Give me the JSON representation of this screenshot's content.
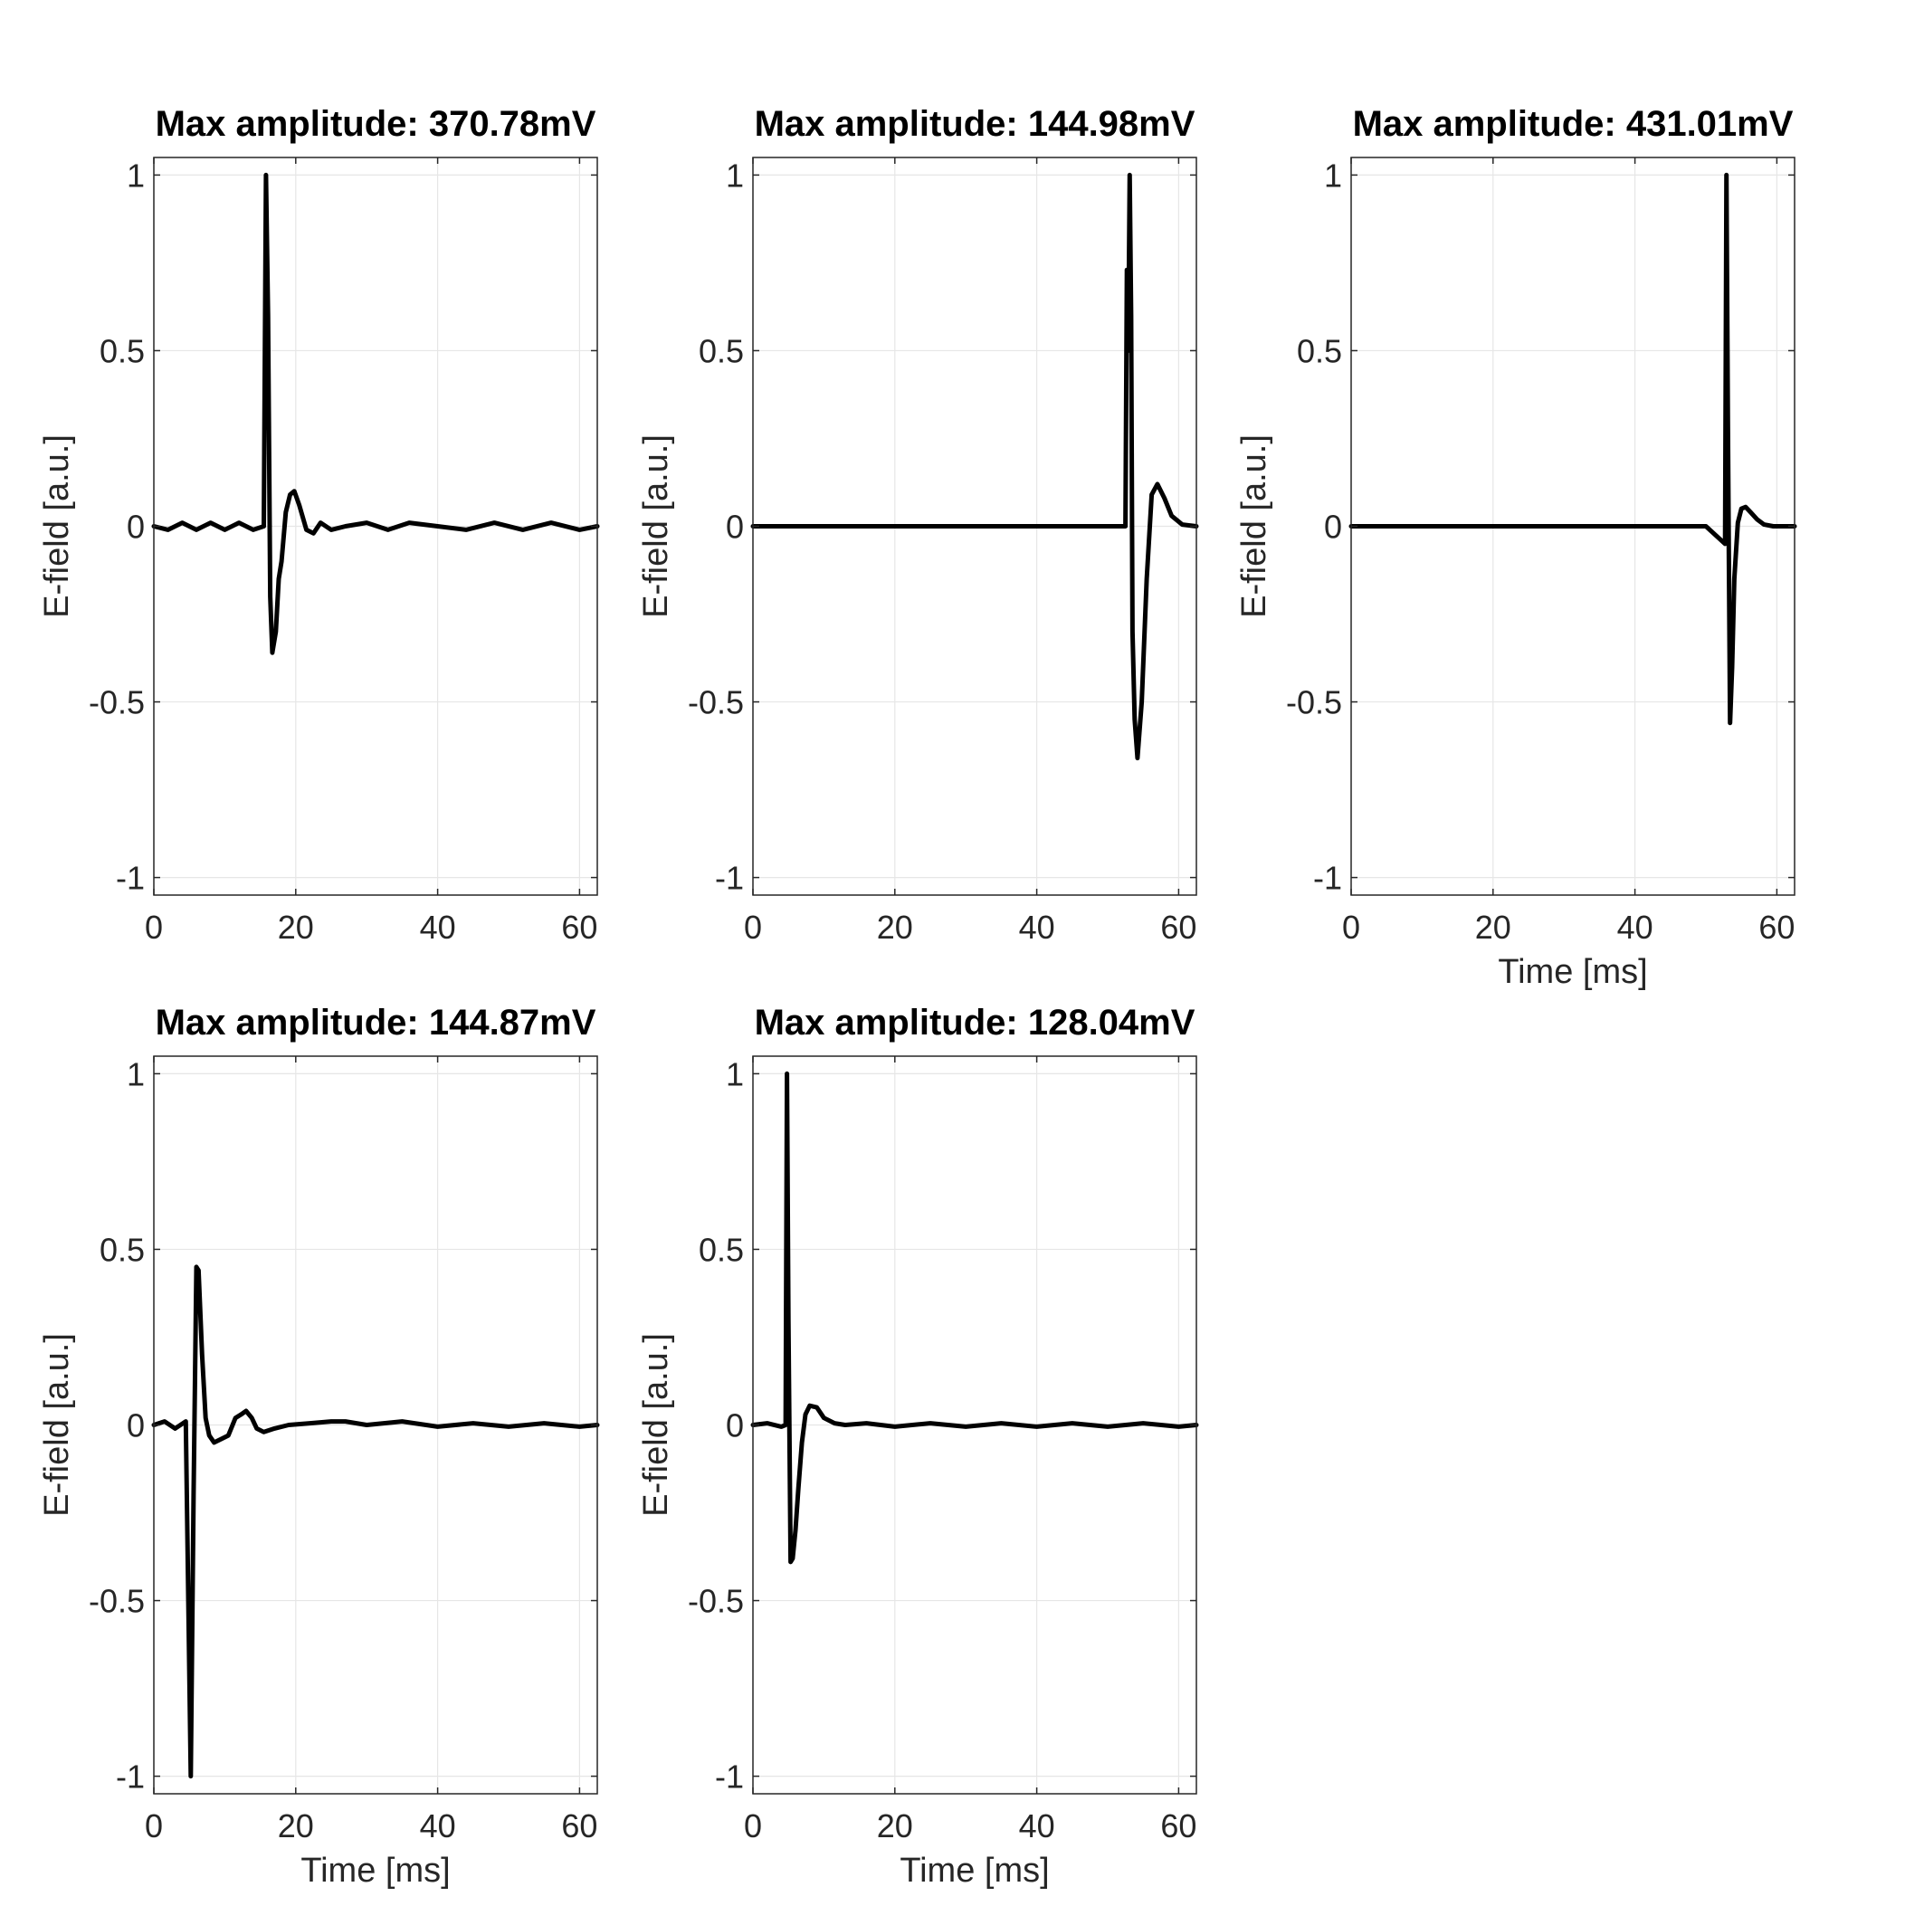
{
  "chart_data": [
    {
      "type": "line",
      "title": "Max amplitude: 370.78mV",
      "xlabel": "",
      "ylabel": "E-field [a.u.]",
      "xlim": [
        0,
        62.5
      ],
      "ylim": [
        -1.05,
        1.05
      ],
      "xticks": [
        0,
        20,
        40,
        60
      ],
      "yticks": [
        1,
        0.5,
        0,
        -0.5,
        -1
      ],
      "grid": true,
      "series": [
        {
          "x": [
            0,
            2,
            4,
            6,
            8,
            10,
            12,
            14,
            15.5,
            15.8,
            16.1,
            16.4,
            16.7,
            17.2,
            17.6,
            18.0,
            18.6,
            19.2,
            19.8,
            20.5,
            21.5,
            22.5,
            23.5,
            25,
            27,
            30,
            33,
            36,
            40,
            44,
            48,
            52,
            56,
            60,
            62.5
          ],
          "y": [
            0,
            -0.01,
            0.01,
            -0.01,
            0.01,
            -0.01,
            0.01,
            -0.01,
            0,
            1.0,
            0.6,
            -0.2,
            -0.36,
            -0.3,
            -0.15,
            -0.1,
            0.04,
            0.09,
            0.1,
            0.06,
            -0.01,
            -0.02,
            0.01,
            -0.01,
            0,
            0.01,
            -0.01,
            0.01,
            0,
            -0.01,
            0.01,
            -0.01,
            0.01,
            -0.01,
            0
          ]
        }
      ]
    },
    {
      "type": "line",
      "title": "Max amplitude: 144.98mV",
      "xlabel": "",
      "ylabel": "E-field [a.u.]",
      "xlim": [
        0,
        62.5
      ],
      "ylim": [
        -1.05,
        1.05
      ],
      "xticks": [
        0,
        20,
        40,
        60
      ],
      "yticks": [
        1,
        0.5,
        0,
        -0.5,
        -1
      ],
      "grid": true,
      "series": [
        {
          "x": [
            0,
            10,
            20,
            30,
            40,
            45,
            50,
            52.5,
            52.7,
            52.9,
            53.1,
            53.3,
            53.5,
            53.8,
            54.2,
            54.8,
            55.5,
            56.2,
            57.0,
            58.0,
            59.0,
            60.5,
            62.5
          ],
          "y": [
            0,
            0,
            0,
            0,
            0,
            0,
            0,
            0,
            0.73,
            0.5,
            1.0,
            0.6,
            -0.3,
            -0.55,
            -0.66,
            -0.5,
            -0.15,
            0.09,
            0.12,
            0.08,
            0.03,
            0.005,
            0
          ]
        }
      ]
    },
    {
      "type": "line",
      "title": "Max amplitude: 431.01mV",
      "xlabel": "Time [ms]",
      "ylabel": "E-field [a.u.]",
      "xlim": [
        0,
        62.5
      ],
      "ylim": [
        -1.05,
        1.05
      ],
      "xticks": [
        0,
        20,
        40,
        60
      ],
      "yticks": [
        1,
        0.5,
        0,
        -0.5,
        -1
      ],
      "grid": true,
      "series": [
        {
          "x": [
            0,
            10,
            20,
            30,
            40,
            45,
            50,
            52.7,
            52.9,
            53.1,
            53.4,
            53.7,
            54.0,
            54.5,
            55.0,
            55.6,
            56.3,
            57.2,
            58.2,
            59.5,
            62.5
          ],
          "y": [
            0,
            0,
            0,
            0,
            0,
            0,
            0,
            -0.05,
            1.0,
            0.3,
            -0.56,
            -0.4,
            -0.15,
            0.01,
            0.05,
            0.055,
            0.04,
            0.02,
            0.005,
            0,
            0
          ]
        }
      ]
    },
    {
      "type": "line",
      "title": "Max amplitude: 144.87mV",
      "xlabel": "Time [ms]",
      "ylabel": "E-field [a.u.]",
      "xlim": [
        0,
        62.5
      ],
      "ylim": [
        -1.05,
        1.05
      ],
      "xticks": [
        0,
        20,
        40,
        60
      ],
      "yticks": [
        1,
        0.5,
        0,
        -0.5,
        -1
      ],
      "grid": true,
      "series": [
        {
          "x": [
            0,
            1.5,
            3,
            4.5,
            5.2,
            5.6,
            6.0,
            6.3,
            6.8,
            7.3,
            7.8,
            8.5,
            9.5,
            10.5,
            11.5,
            12.3,
            13.0,
            13.8,
            14.5,
            15.5,
            17,
            19,
            22,
            25,
            27,
            30,
            35,
            40,
            45,
            50,
            55,
            60,
            62.5
          ],
          "y": [
            0,
            0.01,
            -0.01,
            0.01,
            -1.0,
            -0.2,
            0.45,
            0.44,
            0.2,
            0.02,
            -0.03,
            -0.05,
            -0.04,
            -0.03,
            0.02,
            0.03,
            0.04,
            0.02,
            -0.01,
            -0.02,
            -0.01,
            0,
            0.005,
            0.01,
            0.01,
            0,
            0.01,
            -0.005,
            0.005,
            -0.005,
            0.005,
            -0.005,
            0
          ]
        }
      ]
    },
    {
      "type": "line",
      "title": "Max amplitude: 128.04mV",
      "xlabel": "Time [ms]",
      "ylabel": "E-field [a.u.]",
      "xlim": [
        0,
        62.5
      ],
      "ylim": [
        -1.05,
        1.05
      ],
      "xticks": [
        0,
        20,
        40,
        60
      ],
      "yticks": [
        1,
        0.5,
        0,
        -0.5,
        -1
      ],
      "grid": true,
      "series": [
        {
          "x": [
            0,
            2,
            4,
            4.6,
            4.8,
            5.0,
            5.3,
            5.6,
            6.0,
            6.4,
            6.9,
            7.4,
            8.0,
            9.0,
            10.0,
            11.5,
            13,
            16,
            20,
            25,
            30,
            35,
            40,
            45,
            50,
            55,
            60,
            62.5
          ],
          "y": [
            0,
            0.005,
            -0.005,
            0,
            1.0,
            0.3,
            -0.39,
            -0.38,
            -0.3,
            -0.18,
            -0.05,
            0.03,
            0.055,
            0.05,
            0.02,
            0.005,
            0,
            0.005,
            -0.005,
            0.005,
            -0.005,
            0.005,
            -0.005,
            0.005,
            -0.005,
            0.005,
            -0.005,
            0
          ]
        }
      ]
    }
  ]
}
